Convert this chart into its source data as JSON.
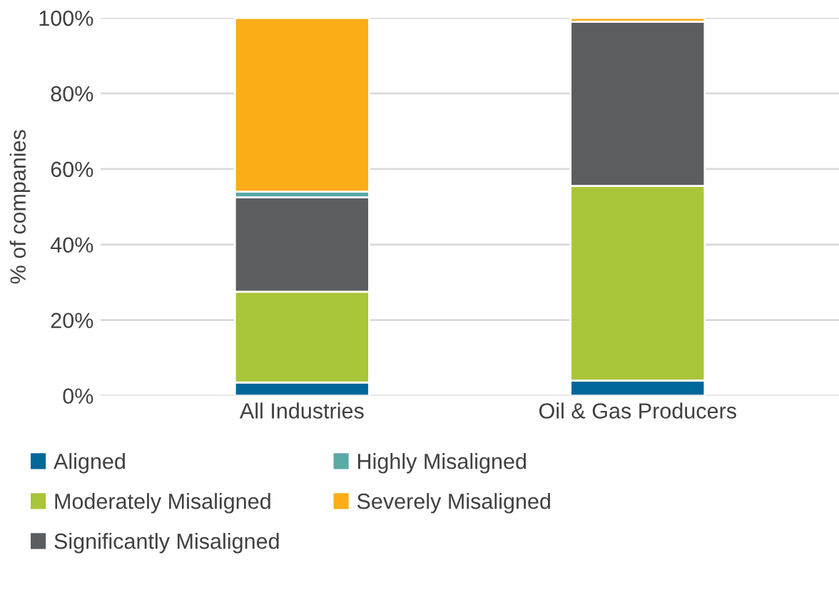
{
  "chart_data": {
    "type": "bar",
    "stacked": true,
    "ylabel": "% of companies",
    "categories": [
      "All Industries",
      "Oil & Gas Producers"
    ],
    "series": [
      {
        "name": "Aligned",
        "color": "#00679a",
        "values": [
          3.5,
          4
        ]
      },
      {
        "name": "Moderately Misaligned",
        "color": "#a9c539",
        "values": [
          24,
          51.5
        ]
      },
      {
        "name": "Significantly Misaligned",
        "color": "#5a5e61",
        "values": [
          25,
          43.5
        ]
      },
      {
        "name": "Highly Misaligned",
        "color": "#5aaaa6",
        "values": [
          1.5,
          0
        ]
      },
      {
        "name": "Severely Misaligned",
        "color": "#fbad18",
        "values": [
          46,
          1
        ]
      }
    ],
    "ylim": [
      0,
      100
    ],
    "yticks": [
      {
        "value": 0,
        "label": "0%"
      },
      {
        "value": 20,
        "label": "20%"
      },
      {
        "value": 40,
        "label": "40%"
      },
      {
        "value": 60,
        "label": "60%"
      },
      {
        "value": 80,
        "label": "80%"
      },
      {
        "value": 100,
        "label": "100%"
      }
    ],
    "grid": "y",
    "legend": "bottom"
  }
}
